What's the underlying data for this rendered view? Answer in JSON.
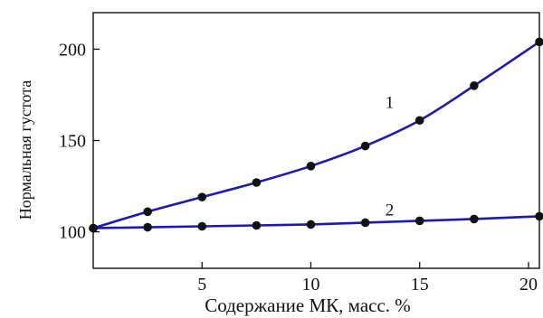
{
  "chart_data": {
    "type": "line",
    "title": "",
    "xlabel": "Содержание МК, масс. %",
    "ylabel": "Нормальная густота",
    "xlim": [
      0,
      20.5
    ],
    "ylim": [
      80,
      220
    ],
    "x_ticks": [
      5,
      10,
      15,
      20
    ],
    "y_ticks": [
      100,
      150,
      200
    ],
    "grid": false,
    "legend": "none",
    "series": [
      {
        "name": "1",
        "color": "#1a1ab4",
        "x": [
          0,
          2.5,
          5,
          7.5,
          10,
          12.5,
          15,
          17.5,
          20.5
        ],
        "y": [
          102,
          111,
          119,
          127,
          136,
          147,
          161,
          180,
          204
        ]
      },
      {
        "name": "2",
        "color": "#1a1ab4",
        "x": [
          0,
          2.5,
          5,
          7.5,
          10,
          12.5,
          15,
          17.5,
          20.5
        ],
        "y": [
          102,
          102.5,
          103,
          103.5,
          104,
          105,
          106,
          107,
          108.5
        ]
      }
    ]
  }
}
